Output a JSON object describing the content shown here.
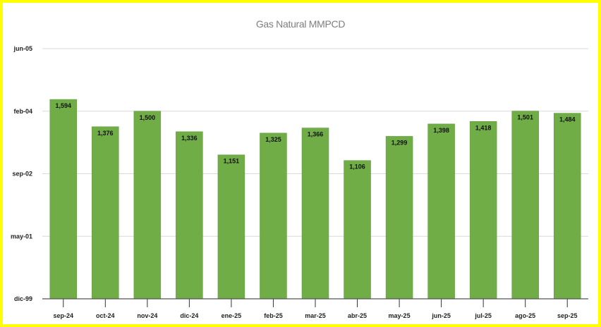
{
  "chart_data": {
    "type": "bar",
    "title": "Gas Natural MMPCD",
    "categories": [
      "sep-24",
      "oct-24",
      "nov-24",
      "dic-24",
      "ene-25",
      "feb-25",
      "mar-25",
      "abr-25",
      "may-25",
      "jun-25",
      "jul-25",
      "ago-25",
      "sep-25"
    ],
    "values": [
      1594,
      1376,
      1500,
      1336,
      1151,
      1325,
      1366,
      1106,
      1299,
      1398,
      1418,
      1501,
      1484
    ],
    "data_labels": [
      "1,594",
      "1,376",
      "1,500",
      "1,336",
      "1,151",
      "1,325",
      "1,366",
      "1,106",
      "1,299",
      "1,398",
      "1,418",
      "1,501",
      "1,484"
    ],
    "ylim": [
      0,
      2000
    ],
    "yticks": [
      0,
      500,
      1000,
      1500,
      2000
    ],
    "ytick_labels": [
      "dic-99",
      "may-01",
      "sep-02",
      "feb-04",
      "jun-05"
    ],
    "xlabel": "",
    "ylabel": "",
    "grid": true,
    "legend": "none",
    "colors": {
      "bar": "#70ad47",
      "border": "#ffff00",
      "grid": "#d9d9d9",
      "title": "#7f7f7f"
    }
  }
}
